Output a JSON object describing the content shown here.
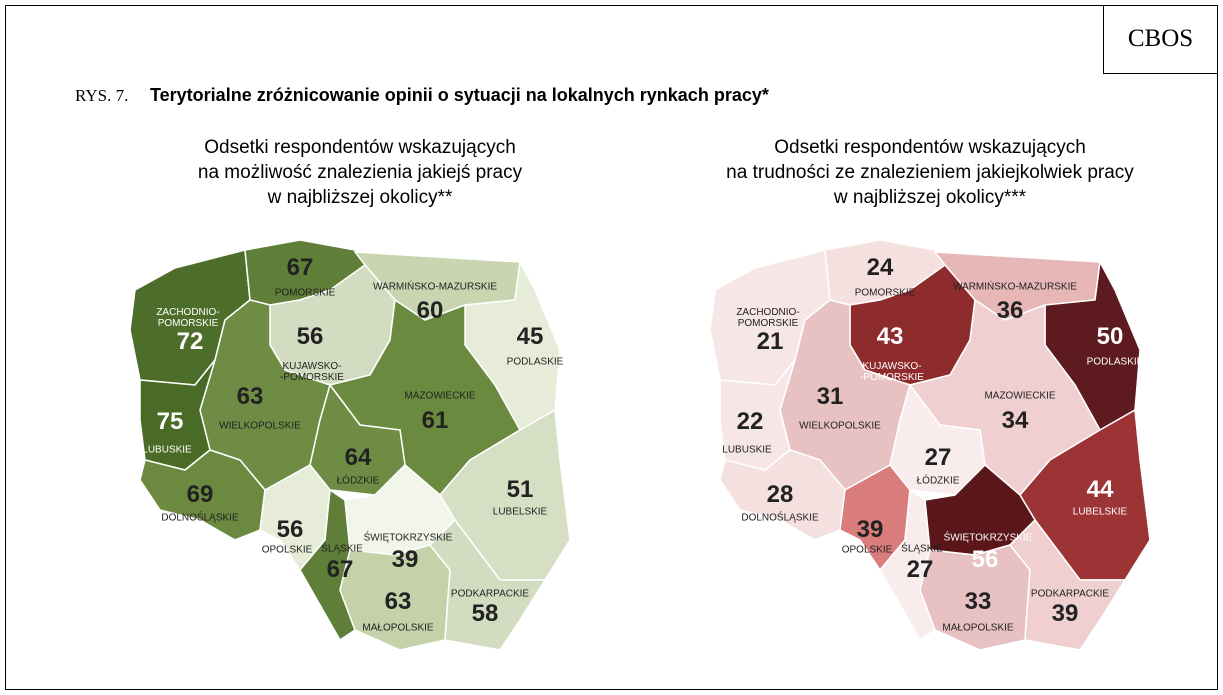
{
  "header": {
    "source": "CBOS",
    "figure": "RYS. 7.",
    "title": "Terytorialne zróżnicowanie opinii o sytuacji na lokalnych rynkach pracy*"
  },
  "maps": [
    {
      "subtitle": "Odsetki respondentów wskazujących\nna możliwość znalezienia jakiejś pracy\nw najbliższej okolicy**",
      "regions": [
        {
          "name": "ZACHODNIO-\nPOMORSKIE",
          "value": 72,
          "color": "#4d6e2a"
        },
        {
          "name": "POMORSKIE",
          "value": 67,
          "color": "#5f7f38"
        },
        {
          "name": "WARMIŃSKO-MAZURSKIE",
          "value": 60,
          "color": "#c9d4b0"
        },
        {
          "name": "PODLASKIE",
          "value": 45,
          "color": "#e6ecd8"
        },
        {
          "name": "KUJAWSKO-\n-POMORSKIE",
          "value": 56,
          "color": "#d3dcc0"
        },
        {
          "name": "WIELKOPOLSKIE",
          "value": 63,
          "color": "#6e8c44"
        },
        {
          "name": "LUBUSKIE",
          "value": 75,
          "color": "#4a6b26"
        },
        {
          "name": "MAZOWIECKIE",
          "value": 61,
          "color": "#6a8a3f"
        },
        {
          "name": "ŁÓDZKIE",
          "value": 64,
          "color": "#6e8c44"
        },
        {
          "name": "LUBELSKIE",
          "value": 51,
          "color": "#d6dfc3"
        },
        {
          "name": "DOLNOŚLĄSKIE",
          "value": 69,
          "color": "#6b8a40"
        },
        {
          "name": "OPOLSKIE",
          "value": 56,
          "color": "#e6ecd8"
        },
        {
          "name": "ŚLĄSKIE",
          "value": 67,
          "color": "#5f7f38"
        },
        {
          "name": "ŚWIĘTOKRZYSKIE",
          "value": 39,
          "color": "#f2f5ea"
        },
        {
          "name": "MAŁOPOLSKIE",
          "value": 63,
          "color": "#c5d1a9"
        },
        {
          "name": "PODKARPACKIE",
          "value": 58,
          "color": "#d3dcc0"
        }
      ]
    },
    {
      "subtitle": "Odsetki respondentów wskazujących\nna trudności ze znalezieniem jakiejkolwiek pracy\nw najbliższej okolicy***",
      "regions": [
        {
          "name": "ZACHODNIO-\nPOMORSKIE",
          "value": 21,
          "color": "#f7e6e6"
        },
        {
          "name": "POMORSKIE",
          "value": 24,
          "color": "#f5e0e0"
        },
        {
          "name": "WARMIŃSKO-MAZURSKIE",
          "value": 36,
          "color": "#e7b7b7"
        },
        {
          "name": "PODLASKIE",
          "value": 50,
          "color": "#5e1b1f"
        },
        {
          "name": "KUJAWSKO-\n-POMORSKIE",
          "value": 43,
          "color": "#8e2b2d"
        },
        {
          "name": "WIELKOPOLSKIE",
          "value": 31,
          "color": "#e8c2c2"
        },
        {
          "name": "LUBUSKIE",
          "value": 22,
          "color": "#f7e6e6"
        },
        {
          "name": "MAZOWIECKIE",
          "value": 34,
          "color": "#efcfcf"
        },
        {
          "name": "ŁÓDZKIE",
          "value": 27,
          "color": "#f9ecec"
        },
        {
          "name": "LUBELSKIE",
          "value": 44,
          "color": "#9c3335"
        },
        {
          "name": "DOLNOŚLĄSKIE",
          "value": 28,
          "color": "#f5e0e0"
        },
        {
          "name": "OPOLSKIE",
          "value": 39,
          "color": "#d97c7c"
        },
        {
          "name": "ŚLĄSKIE",
          "value": 27,
          "color": "#f9ecec"
        },
        {
          "name": "ŚWIĘTOKRZYSKIE",
          "value": 56,
          "color": "#5a1619"
        },
        {
          "name": "MAŁOPOLSKIE",
          "value": 33,
          "color": "#e8c2c2"
        },
        {
          "name": "PODKARPACKIE",
          "value": 39,
          "color": "#efcfcf"
        }
      ]
    }
  ]
}
